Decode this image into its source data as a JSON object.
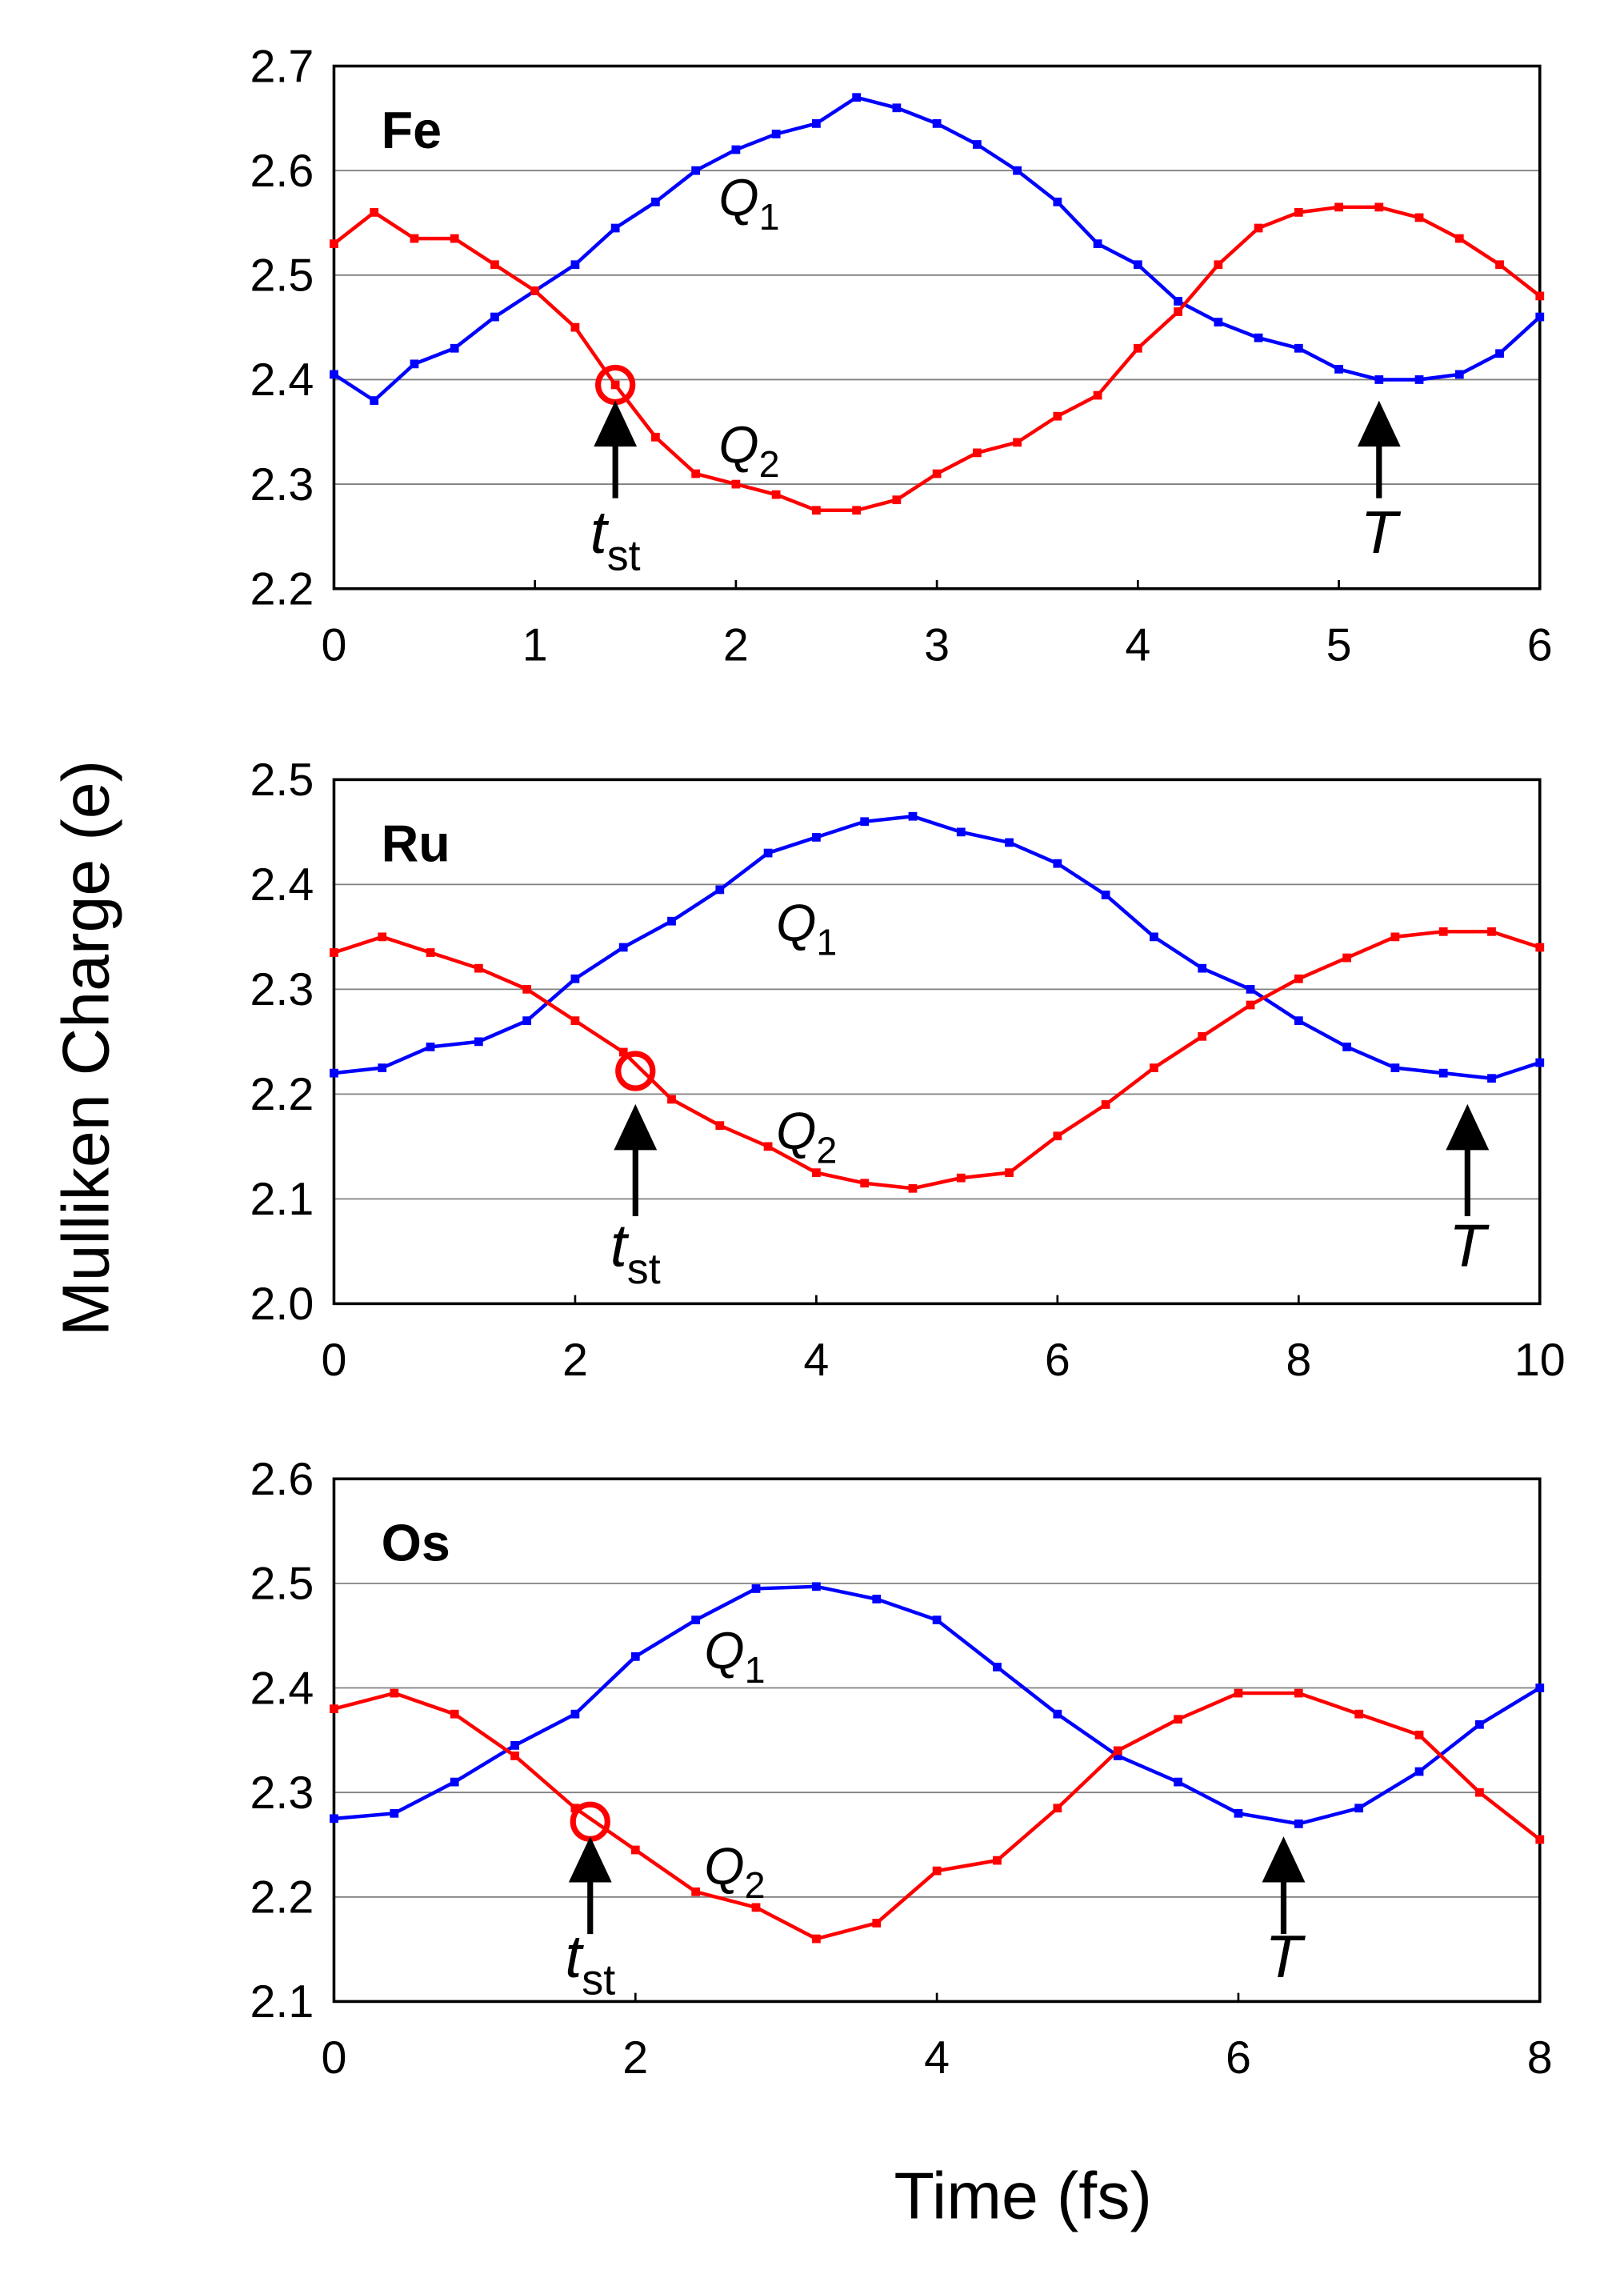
{
  "ylabel": "Mulliken Charge  (e)",
  "xlabel": "Time  (fs)",
  "chart_data": [
    {
      "type": "line",
      "title": "Fe",
      "x": [
        0,
        0.2,
        0.4,
        0.6,
        0.8,
        1.0,
        1.2,
        1.4,
        1.6,
        1.8,
        2.0,
        2.2,
        2.4,
        2.6,
        2.8,
        3.0,
        3.2,
        3.4,
        3.6,
        3.8,
        4.0,
        4.2,
        4.4,
        4.6,
        4.8,
        5.0,
        5.2,
        5.4,
        5.6,
        5.8,
        6.0
      ],
      "series": [
        {
          "name": "Q",
          "sub": "1",
          "color": "#0000ff",
          "values": [
            2.405,
            2.38,
            2.415,
            2.43,
            2.46,
            2.485,
            2.51,
            2.545,
            2.57,
            2.6,
            2.62,
            2.635,
            2.645,
            2.67,
            2.66,
            2.645,
            2.625,
            2.6,
            2.57,
            2.53,
            2.51,
            2.475,
            2.455,
            2.44,
            2.43,
            2.41,
            2.4,
            2.4,
            2.405,
            2.425,
            2.46
          ]
        },
        {
          "name": "Q",
          "sub": "2",
          "color": "#ff0000",
          "values": [
            2.53,
            2.56,
            2.535,
            2.535,
            2.51,
            2.485,
            2.45,
            2.395,
            2.345,
            2.31,
            2.3,
            2.29,
            2.275,
            2.275,
            2.285,
            2.31,
            2.33,
            2.34,
            2.365,
            2.385,
            2.43,
            2.465,
            2.51,
            2.545,
            2.56,
            2.565,
            2.565,
            2.555,
            2.535,
            2.51,
            2.48
          ]
        }
      ],
      "annotations": [
        {
          "text": "t",
          "sub": "st",
          "x": 1.4,
          "y": 2.395
        },
        {
          "text": "T",
          "x": 5.2
        }
      ],
      "xlim": [
        0,
        6
      ],
      "xticks": [
        0,
        1,
        2,
        3,
        4,
        5,
        6
      ],
      "ylim": [
        2.2,
        2.7
      ],
      "yticks": [
        2.2,
        2.3,
        2.4,
        2.5,
        2.6,
        2.7
      ],
      "grid": true
    },
    {
      "type": "line",
      "title": "Ru",
      "x": [
        0,
        0.4,
        0.8,
        1.2,
        1.6,
        2.0,
        2.4,
        2.8,
        3.2,
        3.6,
        4.0,
        4.4,
        4.8,
        5.2,
        5.6,
        6.0,
        6.4,
        6.8,
        7.2,
        7.6,
        8.0,
        8.4,
        8.8,
        9.2,
        9.6,
        10
      ],
      "series": [
        {
          "name": "Q",
          "sub": "1",
          "color": "#0000ff",
          "values": [
            2.22,
            2.225,
            2.245,
            2.25,
            2.27,
            2.31,
            2.34,
            2.365,
            2.395,
            2.43,
            2.445,
            2.46,
            2.465,
            2.45,
            2.44,
            2.42,
            2.39,
            2.35,
            2.32,
            2.3,
            2.27,
            2.245,
            2.225,
            2.22,
            2.215,
            2.23
          ]
        },
        {
          "name": "Q",
          "sub": "2",
          "color": "#ff0000",
          "values": [
            2.335,
            2.35,
            2.335,
            2.32,
            2.3,
            2.27,
            2.24,
            2.195,
            2.17,
            2.15,
            2.125,
            2.115,
            2.11,
            2.12,
            2.125,
            2.16,
            2.19,
            2.225,
            2.255,
            2.285,
            2.31,
            2.33,
            2.35,
            2.355,
            2.355,
            2.34
          ]
        }
      ],
      "annotations": [
        {
          "text": "t",
          "sub": "st",
          "x": 2.5,
          "y": 2.222
        },
        {
          "text": "T",
          "x": 9.4
        }
      ],
      "xlim": [
        0,
        10
      ],
      "xticks": [
        0,
        2,
        4,
        6,
        8,
        10
      ],
      "ylim": [
        2.0,
        2.5
      ],
      "yticks": [
        {
          "value": 2,
          "label": "2.0"
        },
        2.1,
        2.2,
        2.3,
        2.4,
        2.5
      ],
      "grid": true
    },
    {
      "type": "line",
      "title": "Os",
      "x": [
        0,
        0.4,
        0.8,
        1.2,
        1.6,
        2.0,
        2.4,
        2.8,
        3.2,
        3.6,
        4.0,
        4.4,
        4.8,
        5.2,
        5.6,
        6.0,
        6.4,
        6.8,
        7.2,
        7.6,
        8.0
      ],
      "series": [
        {
          "name": "Q",
          "sub": "1",
          "color": "#0000ff",
          "values": [
            2.275,
            2.28,
            2.31,
            2.345,
            2.375,
            2.43,
            2.465,
            2.495,
            2.497,
            2.485,
            2.465,
            2.42,
            2.375,
            2.335,
            2.31,
            2.28,
            2.27,
            2.285,
            2.32,
            2.365,
            2.4
          ]
        },
        {
          "name": "Q",
          "sub": "2",
          "color": "#ff0000",
          "values": [
            2.38,
            2.395,
            2.375,
            2.335,
            2.285,
            2.245,
            2.205,
            2.19,
            2.16,
            2.175,
            2.225,
            2.235,
            2.285,
            2.34,
            2.37,
            2.395,
            2.395,
            2.375,
            2.355,
            2.3,
            2.255
          ]
        }
      ],
      "annotations": [
        {
          "text": "t",
          "sub": "st",
          "x": 1.7,
          "y": 2.272
        },
        {
          "text": "T",
          "x": 6.3
        }
      ],
      "xlim": [
        0,
        8
      ],
      "xticks": [
        0,
        2,
        4,
        6,
        8
      ],
      "ylim": [
        2.1,
        2.6
      ],
      "yticks": [
        2.1,
        2.2,
        2.3,
        2.4,
        2.5,
        2.6
      ],
      "grid": true
    }
  ]
}
